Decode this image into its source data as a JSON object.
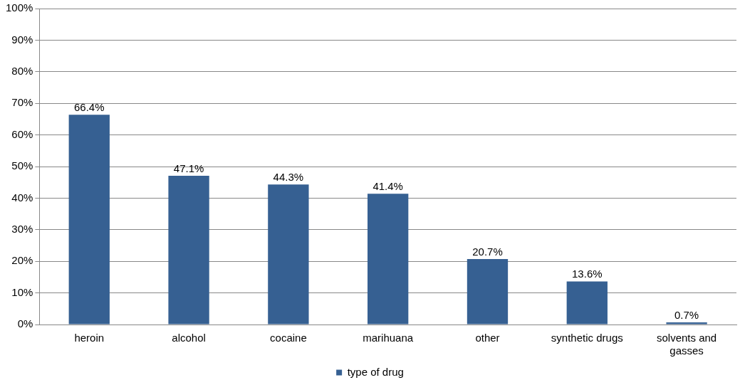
{
  "chart_data": {
    "type": "bar",
    "categories": [
      "heroin",
      "alcohol",
      "cocaine",
      "marihuana",
      "other",
      "synthetic drugs",
      "solvents and gasses"
    ],
    "series": [
      {
        "name": "type of drug",
        "color": "#366092",
        "values": [
          66.4,
          47.1,
          44.3,
          41.4,
          20.7,
          13.6,
          0.7
        ],
        "value_labels": [
          "66.4%",
          "47.1%",
          "44.3%",
          "41.4%",
          "20.7%",
          "13.6%",
          "0.7%"
        ]
      }
    ],
    "ylim": [
      0,
      100
    ],
    "yticks": [
      {
        "value": 0,
        "label": "0%"
      },
      {
        "value": 10,
        "label": "10%"
      },
      {
        "value": 20,
        "label": "20%"
      },
      {
        "value": 30,
        "label": "30%"
      },
      {
        "value": 40,
        "label": "40%"
      },
      {
        "value": 50,
        "label": "50%"
      },
      {
        "value": 60,
        "label": "60%"
      },
      {
        "value": 70,
        "label": "70%"
      },
      {
        "value": 80,
        "label": "80%"
      },
      {
        "value": 90,
        "label": "90%"
      },
      {
        "value": 100,
        "label": "100%"
      }
    ],
    "grid": "y",
    "legend": "bottom"
  }
}
